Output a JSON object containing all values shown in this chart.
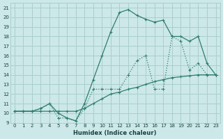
{
  "bg_color": "#cce8e8",
  "line_color": "#2e7d6e",
  "grid_color": "#aacece",
  "xlabel": "Humidex (Indice chaleur)",
  "xlim": [
    -0.5,
    23.5
  ],
  "ylim": [
    9,
    21.5
  ],
  "xticks": [
    0,
    1,
    2,
    3,
    4,
    5,
    6,
    7,
    8,
    9,
    10,
    11,
    12,
    13,
    14,
    15,
    16,
    17,
    18,
    19,
    20,
    21,
    22,
    23
  ],
  "yticks": [
    9,
    10,
    11,
    12,
    13,
    14,
    15,
    16,
    17,
    18,
    19,
    20,
    21
  ],
  "line1_x": [
    0,
    1,
    2,
    3,
    4,
    5,
    6,
    7,
    8,
    9,
    10,
    11,
    12,
    13,
    14,
    15,
    16,
    17,
    18,
    19,
    20,
    21,
    22,
    23
  ],
  "line1_y": [
    10.2,
    10.2,
    10.2,
    10.2,
    10.2,
    10.2,
    10.2,
    10.2,
    10.5,
    11.0,
    11.5,
    12.0,
    12.2,
    12.5,
    12.7,
    13.0,
    13.3,
    13.5,
    13.7,
    13.8,
    13.9,
    14.0,
    14.0,
    14.0
  ],
  "line2_x": [
    0,
    1,
    2,
    3,
    4,
    5,
    6,
    7,
    8,
    9,
    10,
    11,
    12,
    13,
    14,
    15,
    16,
    17,
    18,
    19,
    20,
    21,
    22,
    23
  ],
  "line2_y": [
    10.2,
    10.2,
    10.2,
    10.5,
    11.0,
    9.5,
    9.5,
    9.2,
    10.5,
    12.5,
    12.5,
    12.5,
    12.5,
    14.0,
    15.5,
    16.0,
    12.5,
    12.5,
    18.0,
    17.5,
    14.5,
    15.2,
    14.0,
    14.0
  ],
  "line3_x": [
    0,
    1,
    2,
    3,
    4,
    5,
    6,
    7,
    8,
    9,
    10,
    11,
    12,
    13,
    14,
    15,
    16,
    17,
    18,
    19,
    20,
    21,
    22,
    23
  ],
  "line3_y": [
    10.2,
    10.2,
    10.2,
    10.5,
    11.0,
    10.0,
    9.5,
    9.2,
    11.0,
    13.5,
    16.0,
    18.5,
    20.5,
    20.8,
    20.2,
    19.8,
    19.5,
    19.7,
    18.0,
    18.0,
    17.5,
    18.0,
    15.2,
    14.0
  ],
  "tick_fontsize": 5.0,
  "xlabel_fontsize": 6.0,
  "tick_color": "#1a4040"
}
